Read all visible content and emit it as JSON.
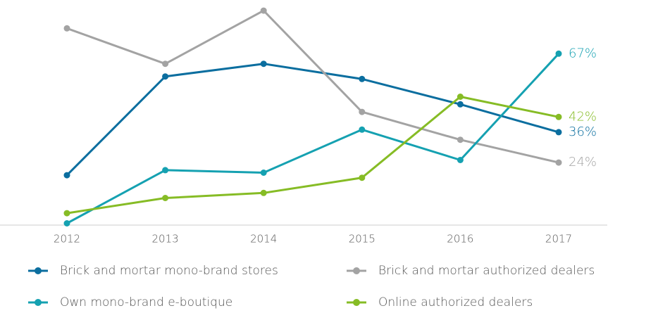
{
  "chart_data": {
    "type": "line",
    "categories": [
      "2012",
      "2013",
      "2014",
      "2015",
      "2016",
      "2017"
    ],
    "ylim": [
      0,
      85
    ],
    "grid": false,
    "legend": "bottom",
    "series": [
      {
        "name": "Brick and mortar mono-brand stores",
        "color": "#0b6e9f",
        "values": [
          19,
          58,
          63,
          57,
          47,
          36
        ],
        "value_labels": [
          null,
          null,
          null,
          null,
          null,
          "36%"
        ]
      },
      {
        "name": "Brick and mortar authorized dealers",
        "color": "#a3a3a3",
        "values": [
          77,
          63,
          84,
          44,
          33,
          24
        ],
        "value_labels": [
          null,
          null,
          null,
          null,
          null,
          "24%"
        ]
      },
      {
        "name": "Own mono-brand e-boutique",
        "color": "#15a1b1",
        "values": [
          0,
          21,
          20,
          37,
          25,
          67
        ],
        "value_labels": [
          null,
          null,
          null,
          null,
          null,
          "67%"
        ]
      },
      {
        "name": "Online authorized dealers",
        "color": "#86bc25",
        "values": [
          4,
          10,
          12,
          18,
          50,
          42
        ],
        "value_labels": [
          null,
          null,
          null,
          null,
          null,
          "42%"
        ]
      }
    ]
  }
}
